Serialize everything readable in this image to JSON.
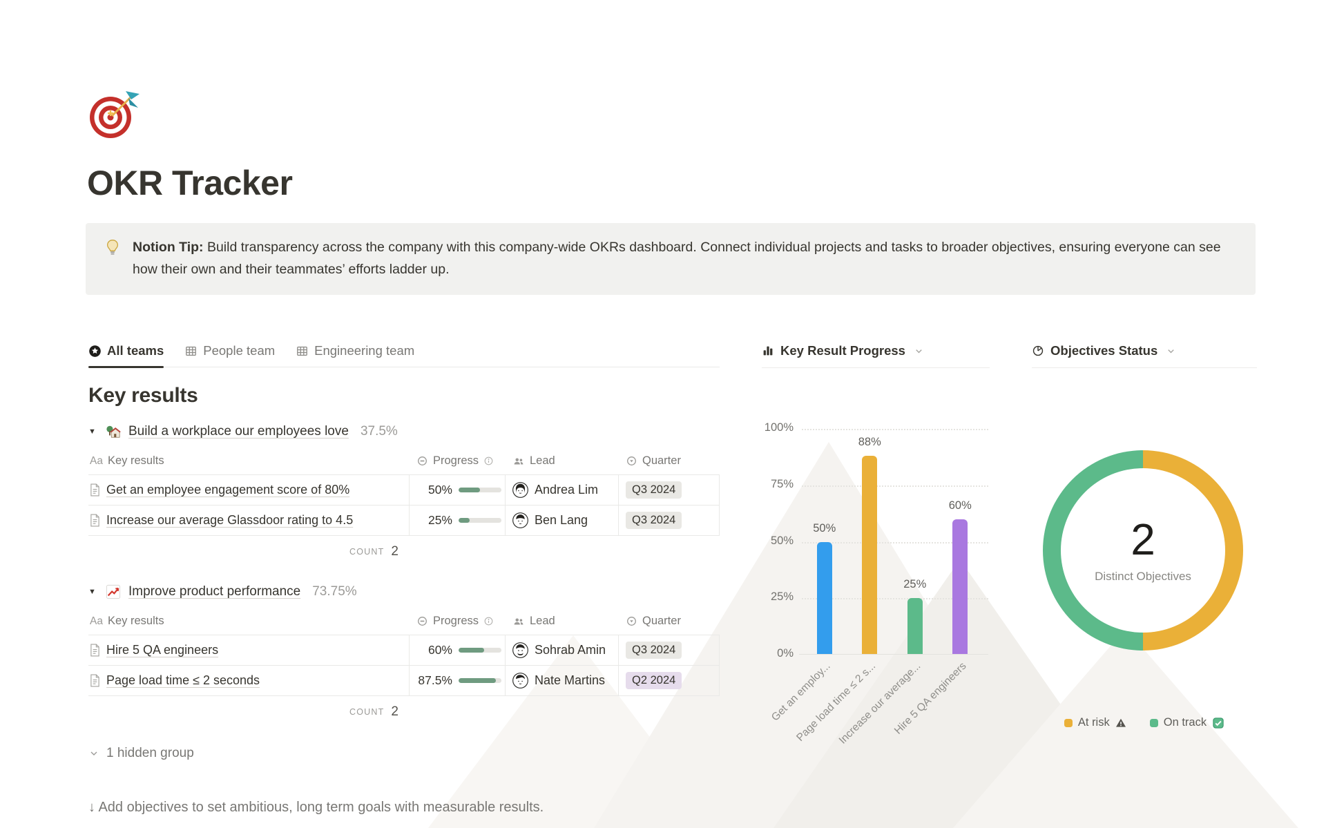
{
  "page": {
    "title": "OKR Tracker",
    "icon": "target-dart-icon",
    "footer": "↓ Add objectives to set ambitious, long term goals with measurable results."
  },
  "callout": {
    "icon": "lightbulb-icon",
    "bold": "Notion Tip:",
    "text": " Build transparency across the company with this company-wide OKRs dashboard. Connect individual projects and tasks to broader objectives, ensuring everyone can see how their own and their teammates’ efforts ladder up."
  },
  "tabs": [
    {
      "label": "All teams",
      "icon": "star-circle-icon",
      "active": true
    },
    {
      "label": "People team",
      "icon": "table-icon",
      "active": false
    },
    {
      "label": "Engineering team",
      "icon": "table-icon",
      "active": false
    }
  ],
  "section": {
    "heading": "Key results",
    "count_label": "COUNT",
    "hidden_group": "1 hidden group",
    "header": {
      "name_icon": "Aa",
      "name": "Key results",
      "progress": "Progress",
      "lead": "Lead",
      "quarter": "Quarter"
    }
  },
  "groups": [
    {
      "icon": "house-garden-icon",
      "title": "Build a workplace our employees love",
      "percent": "37.5%",
      "count": "2",
      "rows": [
        {
          "name": "Get an employee engagement score of 80%",
          "progress": "50%",
          "progress_value": 50,
          "lead": "Andrea Lim",
          "quarter": "Q3 2024",
          "quarter_color": "gray"
        },
        {
          "name": "Increase our average Glassdoor rating to 4.5",
          "progress": "25%",
          "progress_value": 25,
          "lead": "Ben Lang",
          "quarter": "Q3 2024",
          "quarter_color": "gray"
        }
      ]
    },
    {
      "icon": "chart-increasing-icon",
      "title": "Improve product performance",
      "percent": "73.75%",
      "count": "2",
      "rows": [
        {
          "name": "Hire 5 QA engineers",
          "progress": "60%",
          "progress_value": 60,
          "lead": "Sohrab Amin",
          "quarter": "Q3 2024",
          "quarter_color": "gray"
        },
        {
          "name": "Page load time ≤ 2 seconds",
          "progress": "87.5%",
          "progress_value": 87.5,
          "lead": "Nate Martins",
          "quarter": "Q2 2024",
          "quarter_color": "purple"
        }
      ]
    }
  ],
  "chart_data": [
    {
      "type": "bar",
      "title": "Key Result Progress",
      "categories": [
        "Get an employ...",
        "Page load time ≤ 2 s...",
        "Increase our average...",
        "Hire 5 QA engineers"
      ],
      "values": [
        50,
        88,
        25,
        60
      ],
      "value_labels": [
        "50%",
        "88%",
        "25%",
        "60%"
      ],
      "bar_colors": [
        "#339ded",
        "#eab038",
        "#5cba8a",
        "#a978e0"
      ],
      "xlabel": "",
      "ylabel": "",
      "ylim": [
        0,
        100
      ],
      "yticks": [
        "100%",
        "75%",
        "50%",
        "25%",
        "0%"
      ],
      "ytick_values": [
        100,
        75,
        50,
        25,
        0
      ],
      "grid": "dotted-horizontal",
      "legend_position": "none"
    },
    {
      "type": "pie",
      "title": "Objectives Status",
      "center_value": "2",
      "center_label": "Distinct Objectives",
      "slices": [
        {
          "label": "At risk",
          "value": 1,
          "color": "#eab038",
          "suffix_icon": "warning-icon"
        },
        {
          "label": "On track",
          "value": 1,
          "color": "#5cba8a",
          "suffix_icon": "check-icon"
        }
      ],
      "legend_position": "bottom"
    }
  ]
}
